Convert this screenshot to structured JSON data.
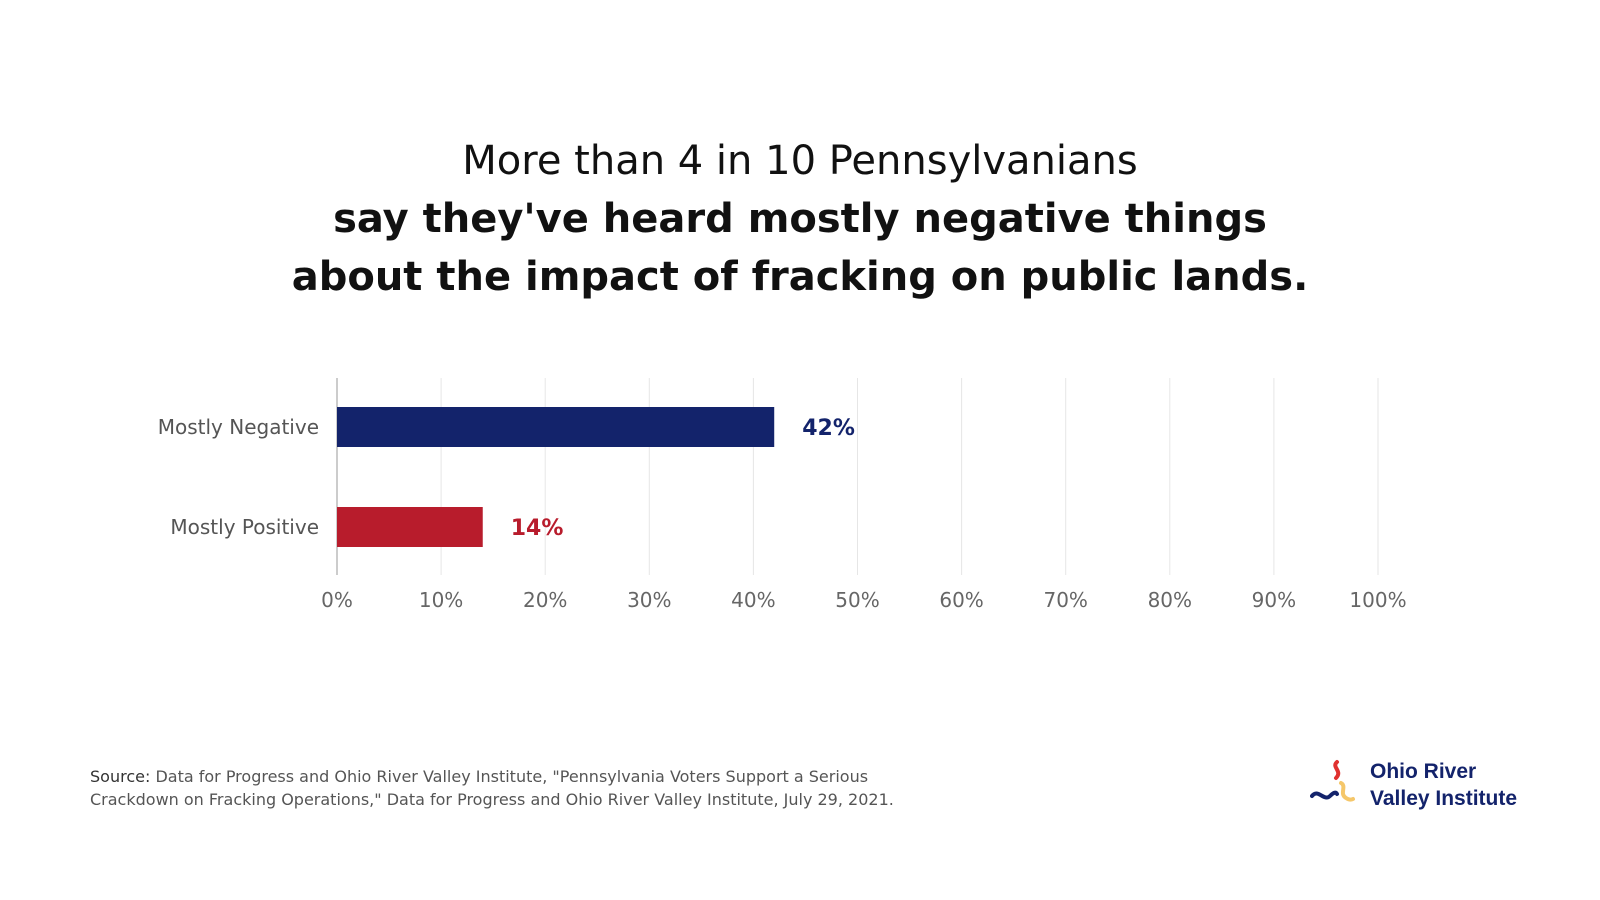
{
  "title": {
    "line1": "More than 4 in 10 Pennsylvanians",
    "line2": "say they've heard mostly negative things",
    "line3": "about the impact of fracking on public lands."
  },
  "chart_data": {
    "type": "bar",
    "orientation": "horizontal",
    "categories": [
      "Mostly Negative",
      "Mostly Positive"
    ],
    "values": [
      42,
      14
    ],
    "value_labels": [
      "42%",
      "14%"
    ],
    "colors": [
      "#13236b",
      "#b81c2c"
    ],
    "xlim": [
      0,
      100
    ],
    "x_ticks": [
      0,
      10,
      20,
      30,
      40,
      50,
      60,
      70,
      80,
      90,
      100
    ],
    "x_tick_labels": [
      "0%",
      "10%",
      "20%",
      "30%",
      "40%",
      "50%",
      "60%",
      "70%",
      "80%",
      "90%",
      "100%"
    ],
    "grid": true
  },
  "source": {
    "label": "Source:",
    "text": "Data for Progress and Ohio River Valley Institute, \"Pennsylvania Voters Support a Serious Crackdown on Fracking Operations,\" Data for Progress and Ohio River Valley Institute, July 29, 2021."
  },
  "logo": {
    "line1": "Ohio River",
    "line2": "Valley Institute",
    "colors": {
      "navy": "#13236b",
      "red": "#e0312f",
      "yellow": "#f5c76a"
    }
  }
}
